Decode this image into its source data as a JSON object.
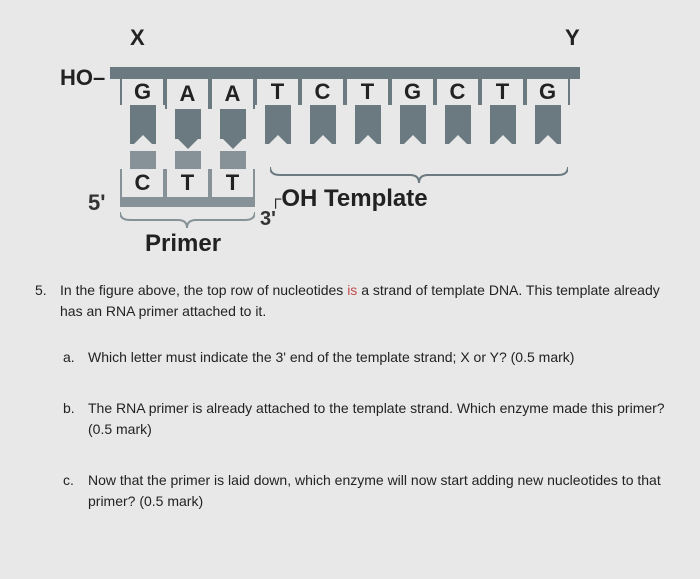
{
  "diagram": {
    "x_label": "X",
    "y_label": "Y",
    "ho_label": "HO",
    "top_nucleotides": [
      "G",
      "A",
      "A",
      "T",
      "C",
      "T",
      "G",
      "C",
      "T",
      "G"
    ],
    "shape_types": [
      "long-notch",
      "short-point",
      "short-point",
      "long-notch",
      "long-notch",
      "long-notch",
      "long-notch",
      "long-notch",
      "long-notch",
      "long-notch"
    ],
    "primer_nucleotides": [
      "C",
      "T",
      "T"
    ],
    "five_prime": "5'",
    "three_prime": "3'",
    "oh_label": "OH",
    "template_label": "Template",
    "primer_label": "Primer",
    "bar_color": "#6a7a80",
    "primer_color": "#869298",
    "background": "#e8e8e8"
  },
  "question": {
    "number": "5.",
    "intro_a": "In the figure above, the top row of nucleotides ",
    "intro_red": "is",
    "intro_b": " a strand of template DNA. This template already has an RNA primer attached to it.",
    "parts": {
      "a": {
        "letter": "a.",
        "text": "Which letter must indicate the 3' end of the template strand; X or Y? (0.5 mark)"
      },
      "b": {
        "letter": "b.",
        "text": "The RNA primer is already attached to the template strand. Which enzyme made this primer? (0.5 mark)"
      },
      "c": {
        "letter": "c.",
        "text": "Now that the primer is laid down, which enzyme will now start adding new nucleotides to that primer? (0.5 mark)"
      }
    }
  }
}
